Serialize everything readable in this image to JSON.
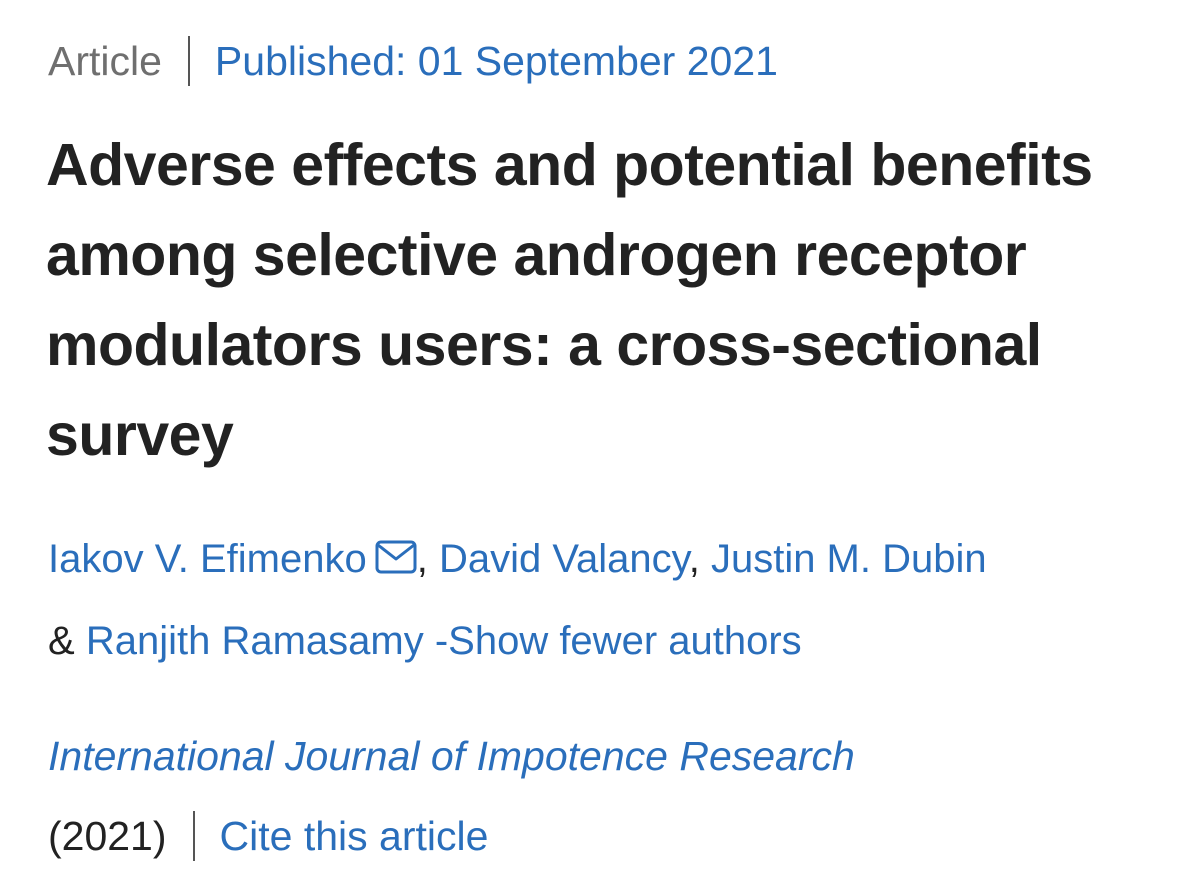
{
  "header": {
    "article_type": "Article",
    "published": "Published: 01 September 2021"
  },
  "title": "Adverse effects and potential benefits among selective androgen receptor modulators users: a cross-sectional survey",
  "authors": {
    "list": [
      {
        "name": "Iakov V. Efimenko",
        "has_email": true
      },
      {
        "name": "David Valancy"
      },
      {
        "name": "Justin M. Dubin"
      },
      {
        "name": "Ranjith Ramasamy"
      }
    ],
    "separator_comma": ",",
    "separator_and": "&",
    "toggle_label": "-Show fewer authors"
  },
  "journal": {
    "name": "International Journal of Impotence Research",
    "year": "(2021)",
    "cite_label": "Cite this article"
  },
  "icons": {
    "email": "envelope-icon"
  },
  "colors": {
    "link": "#2a6ebb",
    "text": "#222222",
    "muted": "#6f6f6f"
  }
}
